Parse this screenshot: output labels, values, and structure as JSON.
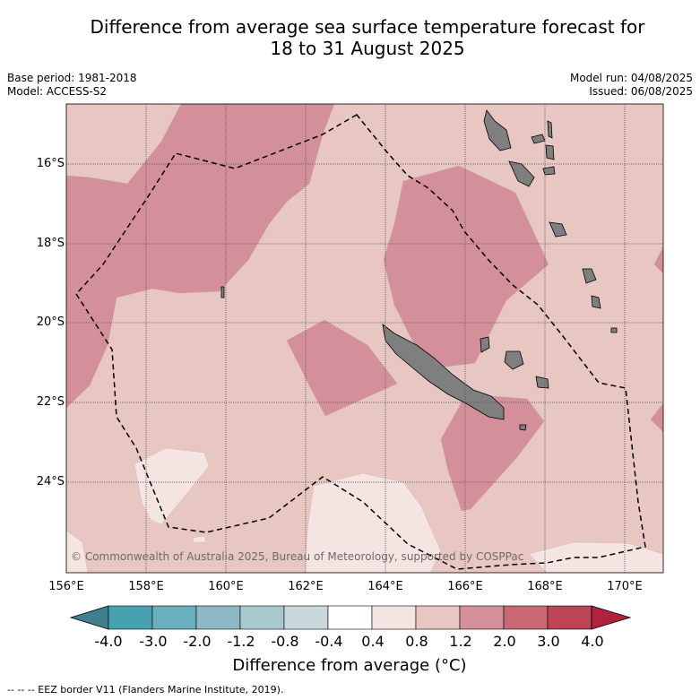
{
  "title_line1": "Difference from average sea surface temperature forecast for",
  "title_line2": "18 to 31 August 2025",
  "meta": {
    "base_period": "Base period: 1981-2018",
    "model": "Model: ACCESS-S2",
    "model_run": "Model run: 04/08/2025",
    "issued": "Issued: 06/08/2025"
  },
  "copyright": "© Commonwealth of Australia 2025, Bureau of Meteorology, supported by COSPPac",
  "axes": {
    "lon_ticks": [
      "156°E",
      "158°E",
      "160°E",
      "162°E",
      "164°E",
      "166°E",
      "168°E",
      "170°E"
    ],
    "lat_ticks": [
      "16°S",
      "18°S",
      "20°S",
      "22°S",
      "24°S"
    ]
  },
  "colorbar": {
    "labels": [
      "-4.0",
      "-3.0",
      "-2.0",
      "-1.2",
      "-0.8",
      "-0.4",
      "0.4",
      "0.8",
      "1.2",
      "2.0",
      "3.0",
      "4.0"
    ],
    "title": "Difference from average (°C)",
    "colors": {
      "under": "#3f7f8e",
      "bins": [
        "#46a2b0",
        "#6aafbd",
        "#8eb9c4",
        "#aac9ce",
        "#cad8db",
        "#ffffff",
        "#f4e5e3",
        "#e8c6c2",
        "#d4909a",
        "#c96773",
        "#bb4455"
      ],
      "over": "#b2223c"
    }
  },
  "map_colors": {
    "background": "#e8c6c2",
    "warm": "#d4909a",
    "light": "#f4e5e3",
    "land": "#7f7f7f"
  },
  "footnote": "--  --  -- EEZ border V11 (Flanders Marine Institute, 2019)."
}
